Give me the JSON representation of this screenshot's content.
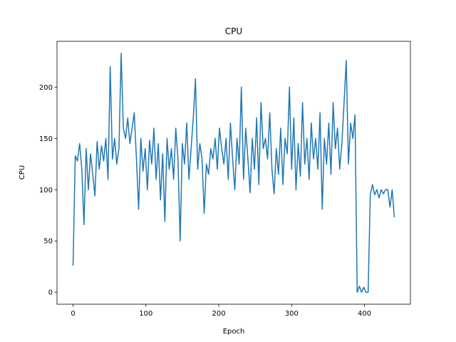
{
  "chart_data": {
    "type": "line",
    "title": "CPU",
    "x_label": "Epoch",
    "y_label": "CPU",
    "x": [
      0,
      3,
      6,
      9,
      12,
      15,
      18,
      21,
      24,
      27,
      30,
      33,
      36,
      39,
      42,
      45,
      48,
      51,
      54,
      57,
      60,
      63,
      66,
      69,
      72,
      75,
      78,
      81,
      84,
      87,
      90,
      93,
      96,
      99,
      102,
      105,
      108,
      111,
      114,
      117,
      120,
      123,
      126,
      129,
      132,
      135,
      138,
      141,
      144,
      147,
      150,
      153,
      156,
      159,
      162,
      165,
      168,
      171,
      174,
      177,
      180,
      183,
      186,
      189,
      192,
      195,
      198,
      201,
      204,
      207,
      210,
      213,
      216,
      219,
      222,
      225,
      228,
      231,
      234,
      237,
      240,
      243,
      246,
      249,
      252,
      255,
      258,
      261,
      264,
      267,
      270,
      273,
      276,
      279,
      282,
      285,
      288,
      291,
      294,
      297,
      300,
      303,
      306,
      309,
      312,
      315,
      318,
      321,
      324,
      327,
      330,
      333,
      336,
      339,
      342,
      345,
      348,
      351,
      354,
      357,
      360,
      363,
      366,
      369,
      372,
      375,
      378,
      381,
      384,
      387,
      390,
      393,
      396,
      399,
      402,
      405,
      408,
      411,
      414,
      417,
      420,
      423,
      426,
      429,
      432,
      435,
      438,
      441
    ],
    "series": [
      {
        "name": "CPU",
        "color": "#1f77b4",
        "values": [
          26,
          133,
          128,
          145,
          120,
          66,
          140,
          100,
          135,
          115,
          94,
          147,
          120,
          143,
          128,
          150,
          110,
          220,
          130,
          150,
          125,
          140,
          233,
          160,
          150,
          170,
          145,
          160,
          175,
          130,
          81,
          150,
          118,
          140,
          100,
          148,
          125,
          160,
          110,
          145,
          90,
          135,
          69,
          150,
          120,
          140,
          110,
          160,
          130,
          50,
          145,
          125,
          165,
          110,
          140,
          170,
          208,
          120,
          145,
          130,
          77,
          125,
          115,
          140,
          130,
          150,
          120,
          160,
          140,
          125,
          150,
          110,
          165,
          130,
          100,
          150,
          125,
          200,
          110,
          160,
          130,
          97,
          150,
          120,
          170,
          105,
          185,
          140,
          150,
          130,
          175,
          120,
          96,
          140,
          115,
          160,
          105,
          150,
          135,
          200,
          120,
          170,
          100,
          145,
          113,
          185,
          125,
          150,
          110,
          165,
          130,
          150,
          120,
          175,
          81,
          150,
          125,
          165,
          115,
          185,
          140,
          160,
          120,
          145,
          185,
          226,
          125,
          165,
          150,
          173,
          0,
          6,
          0,
          5,
          0,
          0,
          95,
          105,
          95,
          100,
          92,
          100,
          96,
          100,
          100,
          83,
          100,
          73
        ]
      }
    ],
    "xlim": [
      -22.05,
      463.05
    ],
    "ylim": [
      -11.65,
      244.65
    ],
    "xticks": [
      0,
      100,
      200,
      300,
      400
    ],
    "yticks": [
      0,
      50,
      100,
      150,
      200
    ]
  }
}
